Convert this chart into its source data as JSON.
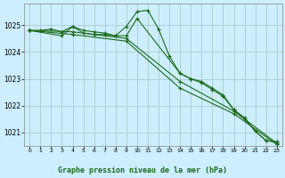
{
  "background_color": "#cceeff",
  "grid_color": "#aacccc",
  "line_color": "#1a6b1a",
  "title": "Graphe pression niveau de la mer (hPa)",
  "xlim": [
    -0.5,
    23.5
  ],
  "ylim": [
    1020.5,
    1025.8
  ],
  "yticks": [
    1021,
    1022,
    1023,
    1024,
    1025
  ],
  "xticks": [
    0,
    1,
    2,
    3,
    4,
    5,
    6,
    7,
    8,
    9,
    10,
    11,
    12,
    13,
    14,
    15,
    16,
    17,
    18,
    19,
    20,
    21,
    22,
    23
  ],
  "series": [
    {
      "x": [
        0,
        1,
        2,
        3,
        4,
        5,
        6,
        7,
        8,
        9,
        10,
        11,
        12,
        13,
        14,
        15,
        16,
        17,
        18,
        19,
        20,
        21,
        22,
        23
      ],
      "y": [
        1024.8,
        1024.8,
        1024.85,
        1024.75,
        1024.95,
        1024.8,
        1024.75,
        1024.7,
        1024.6,
        1024.95,
        1025.5,
        1025.55,
        1024.85,
        1023.85,
        1023.2,
        1023.0,
        1022.9,
        1022.65,
        1022.4,
        1021.85,
        1021.55,
        1021.05,
        1020.7,
        1020.65
      ]
    },
    {
      "x": [
        0,
        3,
        4,
        5,
        6,
        7,
        8,
        9,
        10,
        14,
        15,
        16,
        17,
        18,
        19,
        20,
        21,
        22,
        23
      ],
      "y": [
        1024.8,
        1024.6,
        1024.95,
        1024.7,
        1024.65,
        1024.65,
        1024.6,
        1024.6,
        1025.25,
        1023.2,
        1023.0,
        1022.85,
        1022.6,
        1022.35,
        1021.85,
        1021.5,
        1021.05,
        1020.7,
        1020.65
      ]
    },
    {
      "x": [
        0,
        4,
        9,
        14,
        19,
        23
      ],
      "y": [
        1024.8,
        1024.75,
        1024.5,
        1022.9,
        1021.8,
        1020.6
      ]
    },
    {
      "x": [
        0,
        4,
        9,
        14,
        19,
        23
      ],
      "y": [
        1024.8,
        1024.65,
        1024.4,
        1022.65,
        1021.7,
        1020.55
      ]
    }
  ]
}
